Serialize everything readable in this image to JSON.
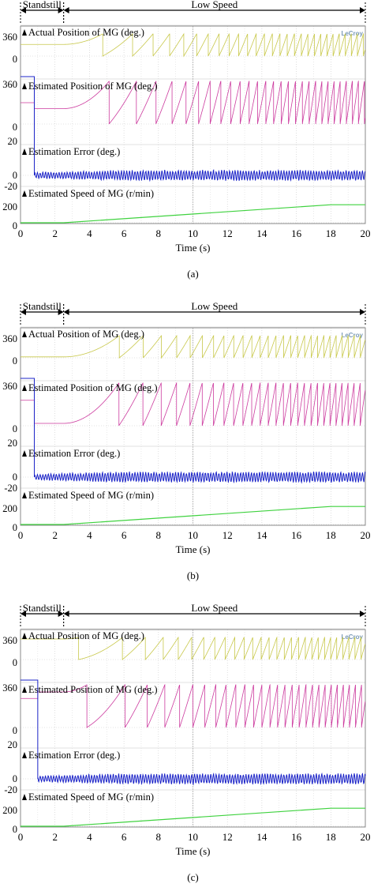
{
  "colors": {
    "actual_position": "#c8c84a",
    "estimated_position": "#cc3a9e",
    "estimation_error": "#1c24c8",
    "estimated_speed": "#3fd23f",
    "grid": "#c8c8c8",
    "frame": "#8a8a8a",
    "logo": "#7a9ab8"
  },
  "logo_text": "LeCroy",
  "chart_data": [
    {
      "type": "line",
      "caption": "(a)",
      "xlabel": "Time (s)",
      "xlim": [
        0,
        20
      ],
      "x_ticks": [
        "0",
        "2",
        "4",
        "6",
        "8",
        "10",
        "12",
        "14",
        "16",
        "18",
        "20"
      ],
      "phases": [
        {
          "label": "Standstill",
          "range": [
            0,
            2.5
          ]
        },
        {
          "label": "Low Speed",
          "range": [
            2.5,
            20
          ]
        }
      ],
      "panels": [
        {
          "title": "Actual Position of MG (deg.)",
          "ticks": [
            "360",
            "0"
          ],
          "ylim": [
            0,
            360
          ],
          "series": {
            "key": "actual_position",
            "initial_value": 190,
            "first_wrap_time": 4.8,
            "final_speed_rpm": 200
          }
        },
        {
          "title": "Estimated Position of MG (deg.)",
          "ticks": [
            "360",
            "0"
          ],
          "ylim": [
            0,
            360
          ],
          "series": {
            "key": "estimated_position",
            "initial_value": 180,
            "step_time": 0.8,
            "value_after_step": 130,
            "first_wrap_time": 4.5,
            "final_speed_rpm": 200
          }
        },
        {
          "title": "Estimation Error (deg.)",
          "ticks": [
            "20",
            "0",
            "-20"
          ],
          "ylim": [
            -20,
            20
          ],
          "series": {
            "key": "estimation_error",
            "initial_value": 360,
            "step_time": 0.8,
            "value_after_step": 0,
            "ripple_amplitude": 4
          }
        },
        {
          "title": "Estimated Speed of MG (r/min)",
          "ticks": [
            "200",
            "0"
          ],
          "ylim": [
            0,
            200
          ],
          "series": {
            "key": "estimated_speed",
            "points": [
              [
                0,
                0
              ],
              [
                2.5,
                0
              ],
              [
                18,
                190
              ],
              [
                20,
                190
              ]
            ]
          }
        }
      ]
    },
    {
      "type": "line",
      "caption": "(b)",
      "xlabel": "Time (s)",
      "xlim": [
        0,
        20
      ],
      "x_ticks": [
        "0",
        "2",
        "4",
        "6",
        "8",
        "10",
        "12",
        "14",
        "16",
        "18",
        "20"
      ],
      "phases": [
        {
          "label": "Standstill",
          "range": [
            0,
            2.5
          ]
        },
        {
          "label": "Low Speed",
          "range": [
            2.5,
            20
          ]
        }
      ],
      "panels": [
        {
          "title": "Actual Position of MG (deg.)",
          "ticks": [
            "360",
            "0"
          ],
          "ylim": [
            0,
            360
          ],
          "series": {
            "key": "actual_position",
            "initial_value": 15,
            "first_wrap_time": 5.0,
            "final_speed_rpm": 200
          }
        },
        {
          "title": "Estimated Position of MG (deg.)",
          "ticks": [
            "360",
            "0"
          ],
          "ylim": [
            0,
            360
          ],
          "series": {
            "key": "estimated_position",
            "initial_value": 215,
            "step_time": 0.8,
            "value_after_step": 20,
            "first_wrap_time": 5.0,
            "final_speed_rpm": 200
          }
        },
        {
          "title": "Estimation Error (deg.)",
          "ticks": [
            "20",
            "0",
            "-20"
          ],
          "ylim": [
            -20,
            20
          ],
          "series": {
            "key": "estimation_error",
            "initial_value": 360,
            "step_time": 0.8,
            "value_after_step": 0,
            "ripple_amplitude": 4
          }
        },
        {
          "title": "Estimated Speed of MG (r/min)",
          "ticks": [
            "200",
            "0"
          ],
          "ylim": [
            0,
            200
          ],
          "series": {
            "key": "estimated_speed",
            "points": [
              [
                0,
                0
              ],
              [
                2.5,
                0
              ],
              [
                18,
                190
              ],
              [
                20,
                190
              ]
            ]
          }
        }
      ]
    },
    {
      "type": "line",
      "caption": "(c)",
      "xlabel": "Time (s)",
      "xlim": [
        0,
        20
      ],
      "x_ticks": [
        "0",
        "2",
        "4",
        "6",
        "8",
        "10",
        "12",
        "14",
        "16",
        "18",
        "20"
      ],
      "phases": [
        {
          "label": "Standstill",
          "range": [
            0,
            2.5
          ]
        },
        {
          "label": "Low Speed",
          "range": [
            2.5,
            20
          ]
        }
      ],
      "panels": [
        {
          "title": "Actual Position of MG (deg.)",
          "ticks": [
            "360",
            "0"
          ],
          "ylim": [
            0,
            360
          ],
          "series": {
            "key": "actual_position",
            "initial_value": 335,
            "first_wrap_time": 4.0,
            "final_speed_rpm": 200
          }
        },
        {
          "title": "Estimated Position of MG (deg.)",
          "ticks": [
            "360",
            "0"
          ],
          "ylim": [
            0,
            360
          ],
          "series": {
            "key": "estimated_position",
            "initial_value": 245,
            "step_time": 1.0,
            "value_after_step": 300,
            "first_wrap_time": 4.0,
            "final_speed_rpm": 200
          }
        },
        {
          "title": "Estimation Error (deg.)",
          "ticks": [
            "20",
            "0",
            "-20"
          ],
          "ylim": [
            -20,
            20
          ],
          "series": {
            "key": "estimation_error",
            "initial_value": 360,
            "step_time": 1.0,
            "value_after_step": 0,
            "ripple_amplitude": 4
          }
        },
        {
          "title": "Estimated Speed of MG (r/min)",
          "ticks": [
            "200",
            "0"
          ],
          "ylim": [
            0,
            200
          ],
          "series": {
            "key": "estimated_speed",
            "points": [
              [
                0,
                0
              ],
              [
                2.5,
                0
              ],
              [
                18,
                190
              ],
              [
                20,
                190
              ]
            ]
          }
        }
      ]
    }
  ]
}
